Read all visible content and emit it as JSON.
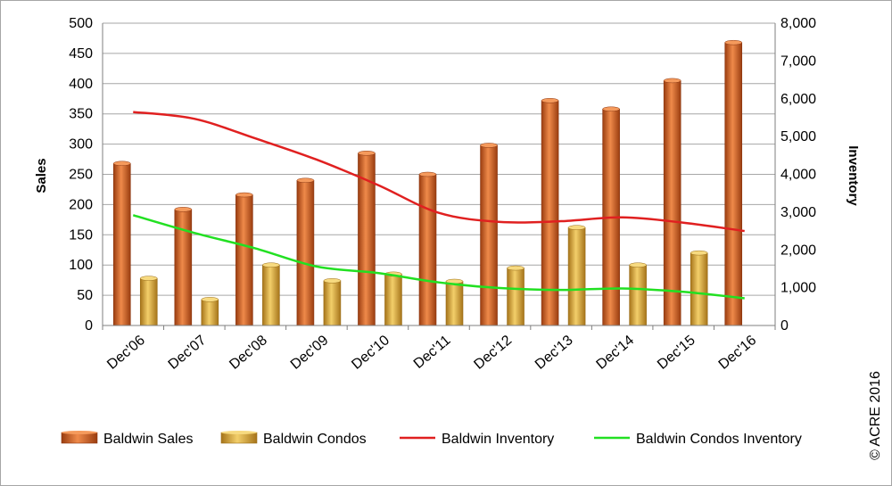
{
  "chart_data": {
    "type": "bar",
    "categories": [
      "Dec'06",
      "Dec'07",
      "Dec'08",
      "Dec'09",
      "Dec'10",
      "Dec'11",
      "Dec'12",
      "Dec'13",
      "Dec'14",
      "Dec'15",
      "Dec'16"
    ],
    "series": [
      {
        "name": "Baldwin Sales",
        "type": "bar",
        "axis": "left",
        "color": "#c8561e",
        "values": [
          268,
          192,
          216,
          240,
          285,
          250,
          298,
          372,
          358,
          405,
          468
        ]
      },
      {
        "name": "Baldwin Condos",
        "type": "bar",
        "axis": "left",
        "color": "#d9a32e",
        "values": [
          78,
          43,
          100,
          74,
          85,
          73,
          95,
          162,
          100,
          120,
          null
        ]
      },
      {
        "name": "Baldwin Inventory",
        "type": "line",
        "axis": "right",
        "color": "#e02020",
        "values": [
          5650,
          5470,
          4950,
          4390,
          3720,
          2980,
          2740,
          2760,
          2860,
          2720,
          2500
        ]
      },
      {
        "name": "Baldwin Condos Inventory",
        "type": "line",
        "axis": "right",
        "color": "#22e022",
        "values": [
          2920,
          2450,
          2040,
          1560,
          1390,
          1140,
          990,
          940,
          980,
          890,
          720
        ]
      }
    ],
    "ylabel": "Sales",
    "ylabel_right": "Inventory",
    "ylim": [
      0,
      500
    ],
    "ylim_right": [
      0,
      8000
    ],
    "yticks": [
      "0",
      "50",
      "100",
      "150",
      "200",
      "250",
      "300",
      "350",
      "400",
      "450",
      "500"
    ],
    "yticks_right": [
      "0",
      "1,000",
      "2,000",
      "3,000",
      "4,000",
      "5,000",
      "6,000",
      "7,000",
      "8,000"
    ],
    "grid": true,
    "legend_position": "bottom"
  },
  "copyright": "© ACRE 2016"
}
